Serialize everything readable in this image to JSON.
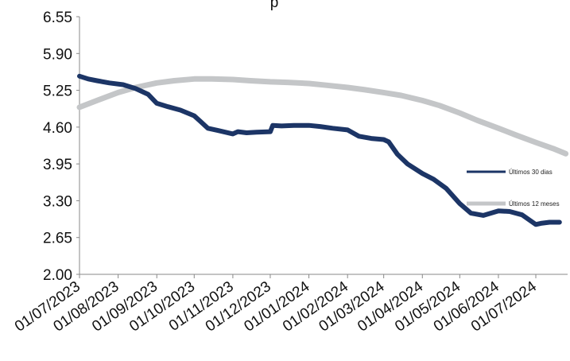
{
  "chart_data": {
    "type": "line",
    "title": "p",
    "xlabel": "",
    "ylabel": "",
    "ylim": [
      2.0,
      6.55
    ],
    "yticks": [
      "6.55",
      "5.90",
      "5.25",
      "4.60",
      "3.95",
      "3.30",
      "2.65",
      "2.00"
    ],
    "xticks": [
      "01/07/2023",
      "01/08/2023",
      "01/09/2023",
      "01/10/2023",
      "01/11/2023",
      "01/12/2023",
      "01/01/2024",
      "01/02/2024",
      "01/03/2024",
      "01/04/2024",
      "01/05/2024",
      "01/06/2024",
      "01/07/2024"
    ],
    "grid": false,
    "legend_position": "right",
    "colors": {
      "series1": "#1c3566",
      "series2": "#c4c6c8"
    },
    "series": [
      {
        "name": "Últimos 30 dias",
        "x": [
          "2023-07-01",
          "2023-07-08",
          "2023-07-15",
          "2023-07-25",
          "2023-08-05",
          "2023-08-15",
          "2023-08-25",
          "2023-09-01",
          "2023-09-10",
          "2023-09-20",
          "2023-10-01",
          "2023-10-05",
          "2023-10-12",
          "2023-10-20",
          "2023-11-01",
          "2023-11-05",
          "2023-11-12",
          "2023-11-20",
          "2023-12-01",
          "2023-12-03",
          "2023-12-10",
          "2023-12-20",
          "2024-01-01",
          "2024-01-10",
          "2024-01-20",
          "2024-02-01",
          "2024-02-10",
          "2024-02-20",
          "2024-03-01",
          "2024-03-05",
          "2024-03-12",
          "2024-03-20",
          "2024-04-01",
          "2024-04-10",
          "2024-04-20",
          "2024-05-01",
          "2024-05-10",
          "2024-05-20",
          "2024-06-01",
          "2024-06-10",
          "2024-06-20",
          "2024-07-01",
          "2024-07-05",
          "2024-07-12",
          "2024-07-20"
        ],
        "y": [
          5.5,
          5.45,
          5.42,
          5.38,
          5.35,
          5.28,
          5.18,
          5.02,
          4.96,
          4.9,
          4.8,
          4.72,
          4.58,
          4.54,
          4.48,
          4.52,
          4.5,
          4.51,
          4.52,
          4.63,
          4.62,
          4.63,
          4.63,
          4.61,
          4.58,
          4.55,
          4.44,
          4.4,
          4.38,
          4.34,
          4.12,
          3.95,
          3.78,
          3.68,
          3.52,
          3.25,
          3.08,
          3.04,
          3.12,
          3.11,
          3.05,
          2.88,
          2.9,
          2.92,
          2.92
        ]
      },
      {
        "name": "Últimos 12 meses",
        "x": [
          "2023-07-01",
          "2023-07-15",
          "2023-08-01",
          "2023-08-15",
          "2023-09-01",
          "2023-09-15",
          "2023-10-01",
          "2023-10-15",
          "2023-11-01",
          "2023-11-15",
          "2023-12-01",
          "2023-12-15",
          "2024-01-01",
          "2024-01-15",
          "2024-02-01",
          "2024-02-15",
          "2024-03-01",
          "2024-03-15",
          "2024-04-01",
          "2024-04-15",
          "2024-05-01",
          "2024-05-15",
          "2024-06-01",
          "2024-06-15",
          "2024-07-01",
          "2024-07-15",
          "2024-07-25"
        ],
        "y": [
          4.95,
          5.07,
          5.21,
          5.3,
          5.38,
          5.42,
          5.45,
          5.45,
          5.44,
          5.42,
          5.4,
          5.39,
          5.37,
          5.34,
          5.3,
          5.26,
          5.21,
          5.16,
          5.07,
          4.98,
          4.85,
          4.72,
          4.58,
          4.46,
          4.33,
          4.22,
          4.13
        ]
      }
    ]
  }
}
